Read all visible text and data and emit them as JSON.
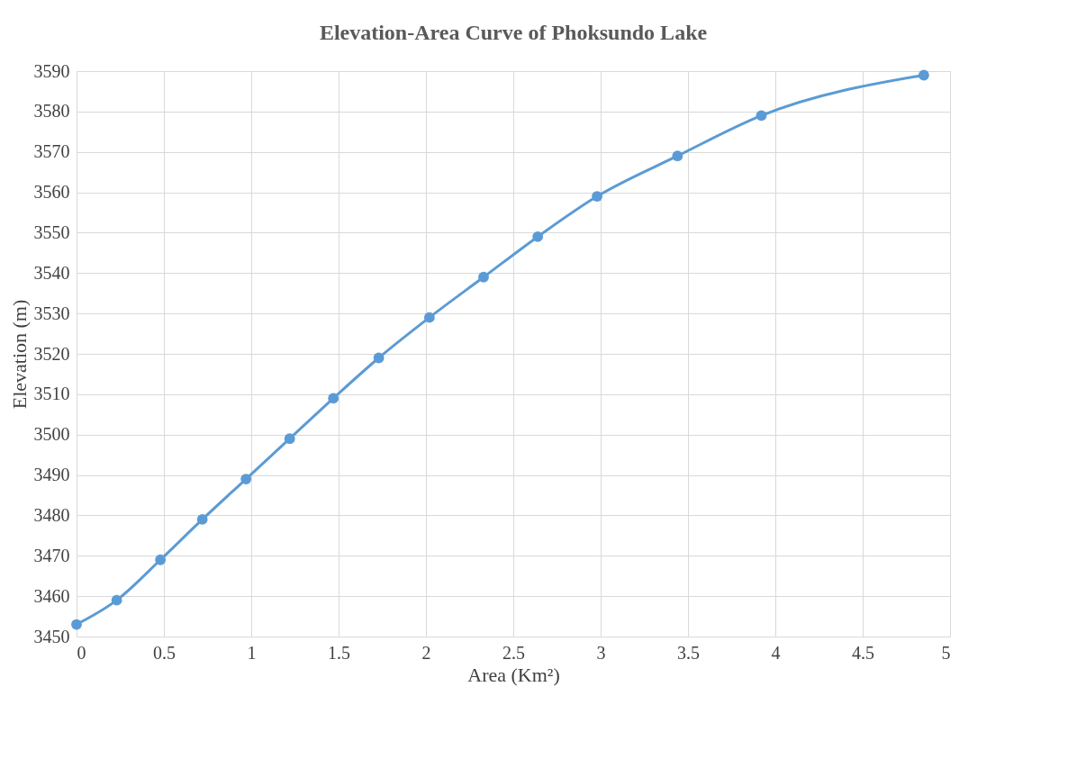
{
  "chart_data": {
    "type": "line",
    "title": "Elevation-Area Curve of Phoksundo Lake",
    "xlabel": "Area (Km²)",
    "ylabel": "Elevation (m)",
    "x": [
      0,
      0.23,
      0.48,
      0.72,
      0.97,
      1.22,
      1.47,
      1.73,
      2.02,
      2.33,
      2.64,
      2.98,
      3.44,
      3.92,
      4.85
    ],
    "series": [
      {
        "color": "#5b9bd5",
        "values": [
          3453,
          3459,
          3469,
          3479,
          3489,
          3499,
          3509,
          3519,
          3529,
          3539,
          3549,
          3559,
          3569,
          3579,
          3589
        ]
      }
    ],
    "xlim": [
      0,
      5
    ],
    "xticks": [
      0,
      0.5,
      1,
      1.5,
      2,
      2.5,
      3,
      3.5,
      4,
      4.5,
      5
    ],
    "ylim": [
      3450,
      3590
    ],
    "yticks": [
      3450,
      3460,
      3470,
      3480,
      3490,
      3500,
      3510,
      3520,
      3530,
      3540,
      3550,
      3560,
      3570,
      3580,
      3590
    ],
    "grid": true,
    "marker": "circle",
    "line_style": "solid"
  }
}
